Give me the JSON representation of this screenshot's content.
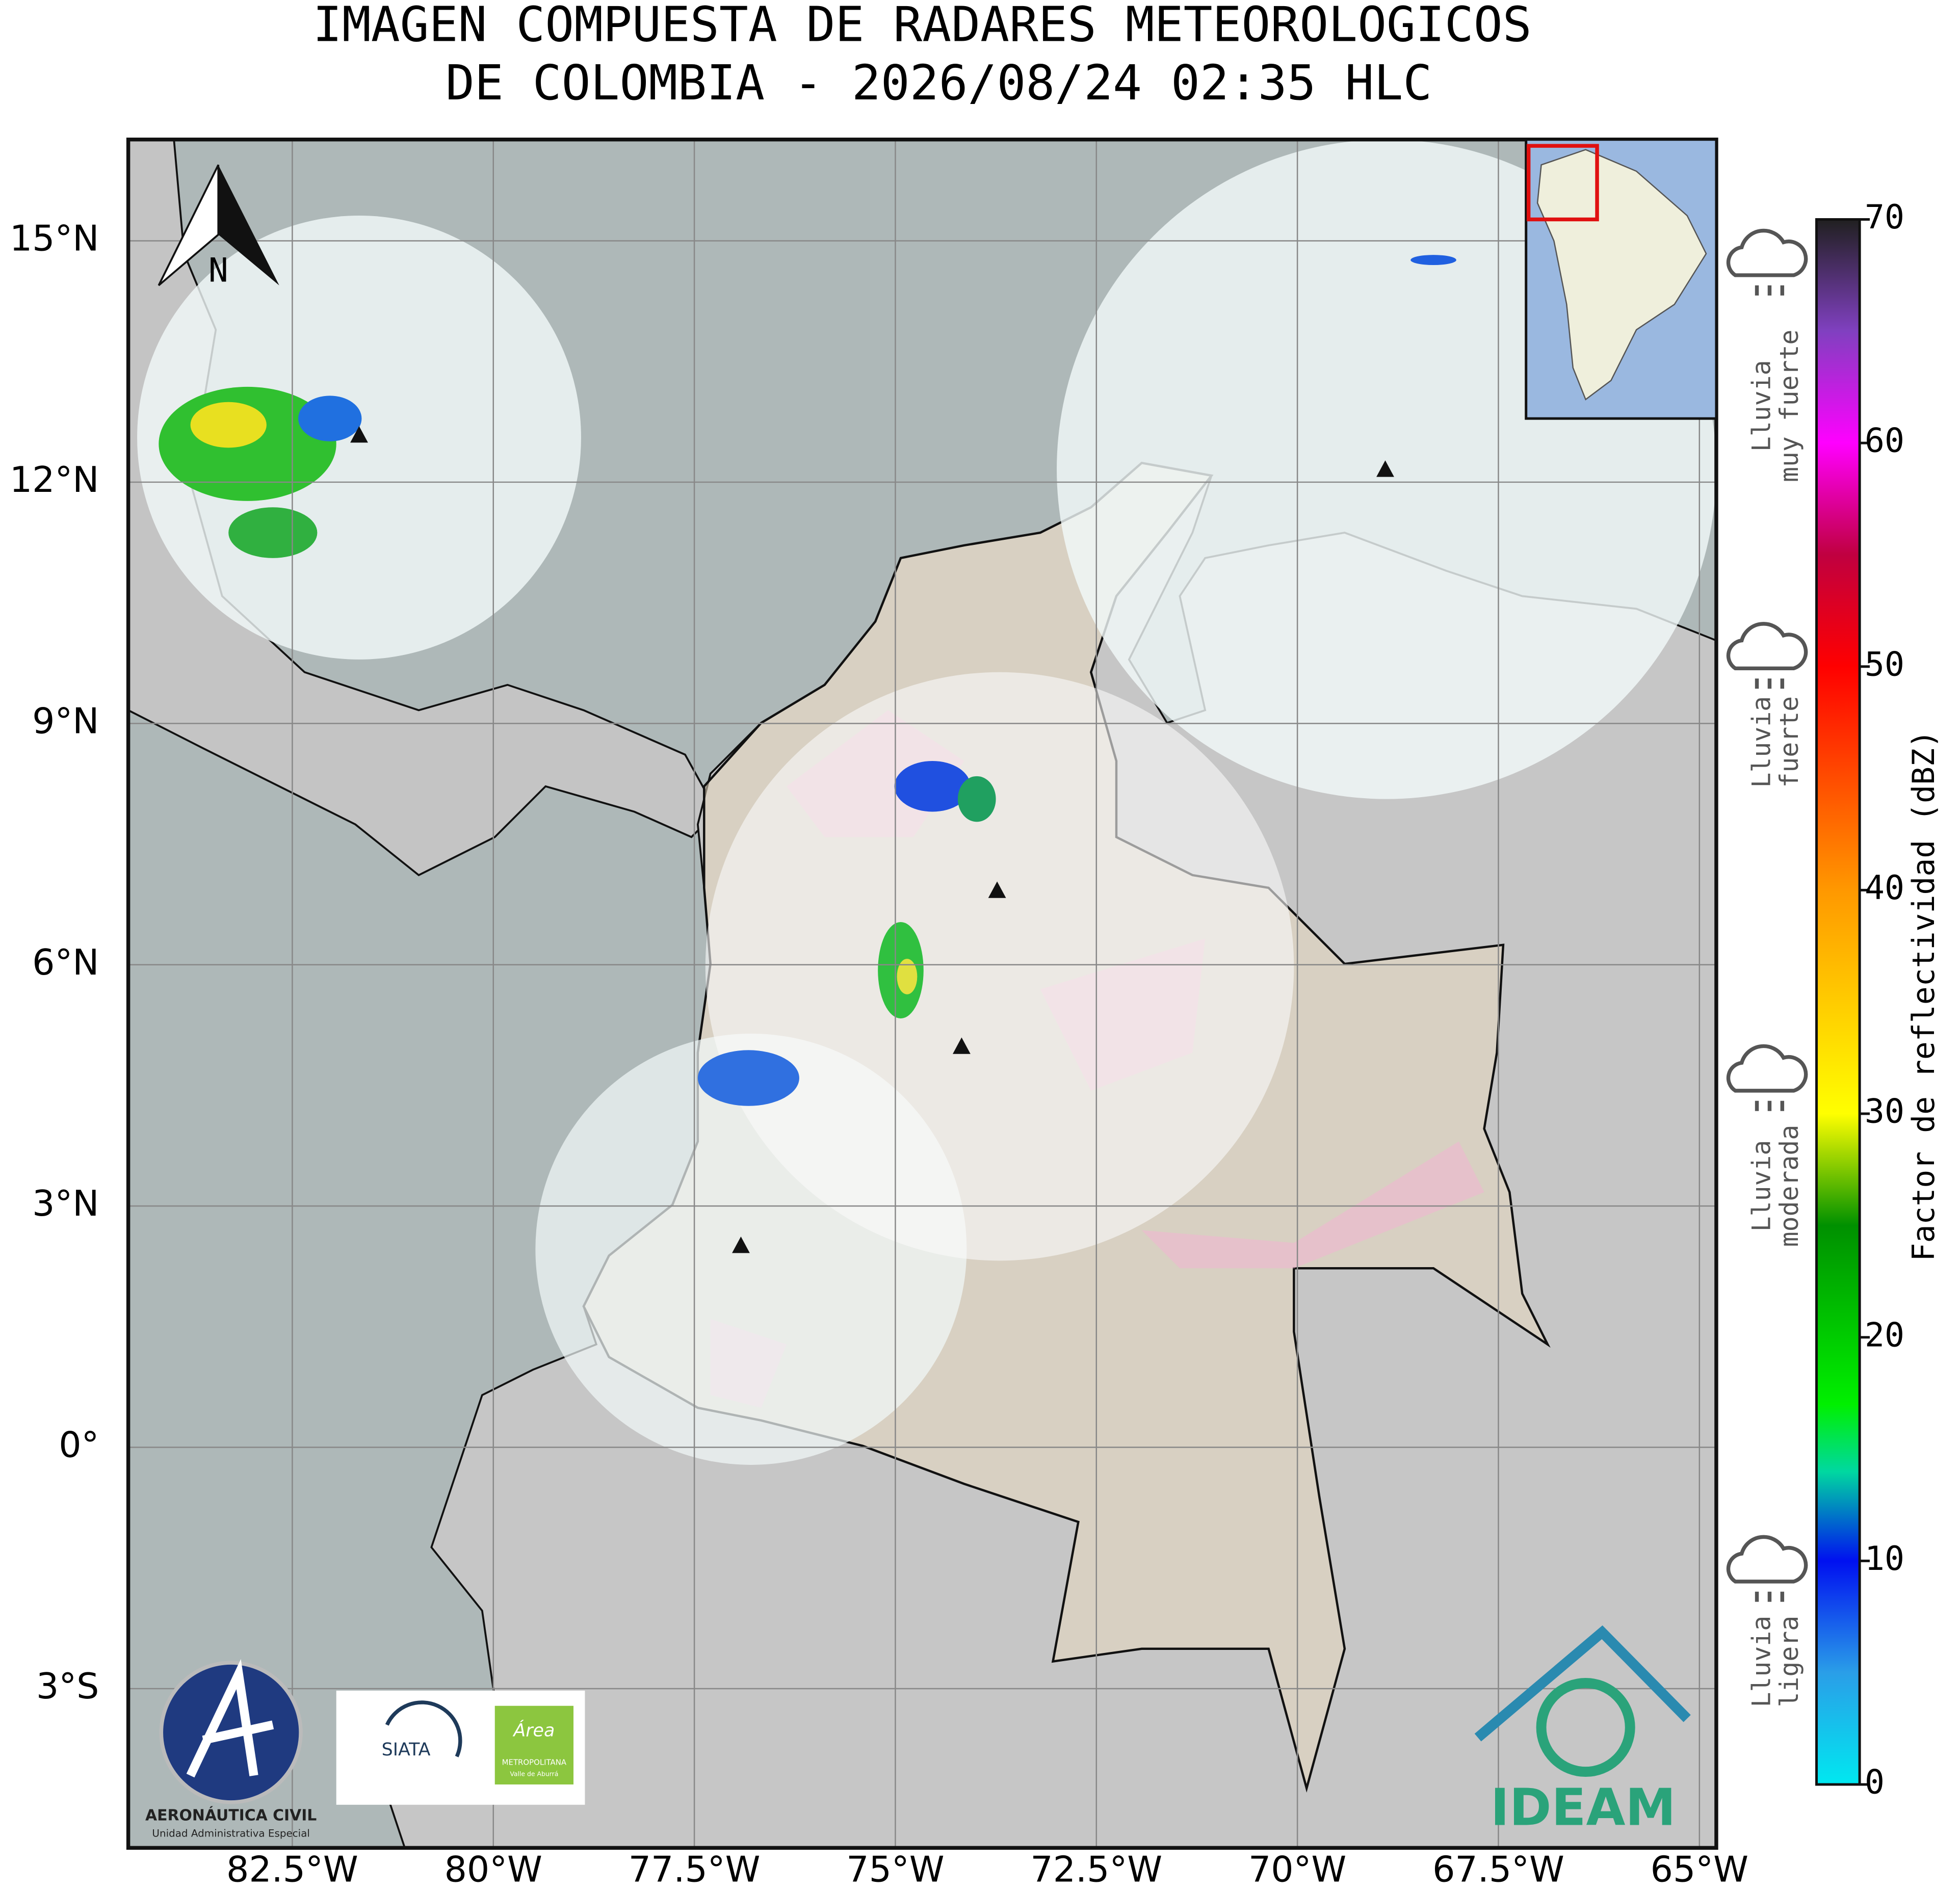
{
  "title": [
    "IMAGEN COMPUESTA DE RADARES METEOROLOGICOS",
    "DE COLOMBIA - 2026/08/24 02:35 HLC"
  ],
  "map": {
    "lonlim": [
      -84.54,
      -64.79
    ],
    "latlim": [
      -4.98,
      16.26
    ],
    "lon_ticks": [
      {
        "value": -82.5,
        "label": "82.5°W"
      },
      {
        "value": -80,
        "label": "80°W"
      },
      {
        "value": -77.5,
        "label": "77.5°W"
      },
      {
        "value": -75,
        "label": "75°W"
      },
      {
        "value": -72.5,
        "label": "72.5°W"
      },
      {
        "value": -70,
        "label": "70°W"
      },
      {
        "value": -67.5,
        "label": "67.5°W"
      },
      {
        "value": -65,
        "label": "65°W"
      }
    ],
    "lat_ticks": [
      {
        "value": 15,
        "label": "15°N"
      },
      {
        "value": 12,
        "label": "12°N"
      },
      {
        "value": 9,
        "label": "9°N"
      },
      {
        "value": 6,
        "label": "6°N"
      },
      {
        "value": 3,
        "label": "3°N"
      },
      {
        "value": 0,
        "label": "0°"
      },
      {
        "value": -3,
        "label": "3°S"
      }
    ],
    "north_label": "N"
  },
  "colorbar": {
    "label": "Factor de reflectividad (dBZ)",
    "ticks": [
      0,
      10,
      20,
      30,
      40,
      50,
      60,
      70
    ],
    "color_stops": [
      [
        0,
        "#00e8f0"
      ],
      [
        5,
        "#2a9ee8"
      ],
      [
        10,
        "#0010f0"
      ],
      [
        14,
        "#00d8a0"
      ],
      [
        17,
        "#00f000"
      ],
      [
        25,
        "#009000"
      ],
      [
        30,
        "#ffff00"
      ],
      [
        40,
        "#ff9800"
      ],
      [
        50,
        "#ff0000"
      ],
      [
        55,
        "#c00040"
      ],
      [
        60,
        "#ff00ff"
      ],
      [
        65,
        "#8040c0"
      ],
      [
        70,
        "#202020"
      ]
    ]
  },
  "legend": [
    {
      "lines": [
        "Lluvia",
        "muy fuerte"
      ]
    },
    {
      "lines": [
        "Lluvia",
        "fuerte"
      ]
    },
    {
      "lines": [
        "Lluvia",
        "moderada"
      ]
    },
    {
      "lines": [
        "Lluvia",
        "ligera"
      ]
    }
  ],
  "logos": {
    "aero": [
      "AERONÁUTICA CIVIL",
      "Unidad Administrativa Especial"
    ],
    "siata": "SIATA",
    "area": [
      "Área",
      "METROPOLITANA",
      "Valle de Aburrá"
    ],
    "ideam": "IDEAM"
  }
}
